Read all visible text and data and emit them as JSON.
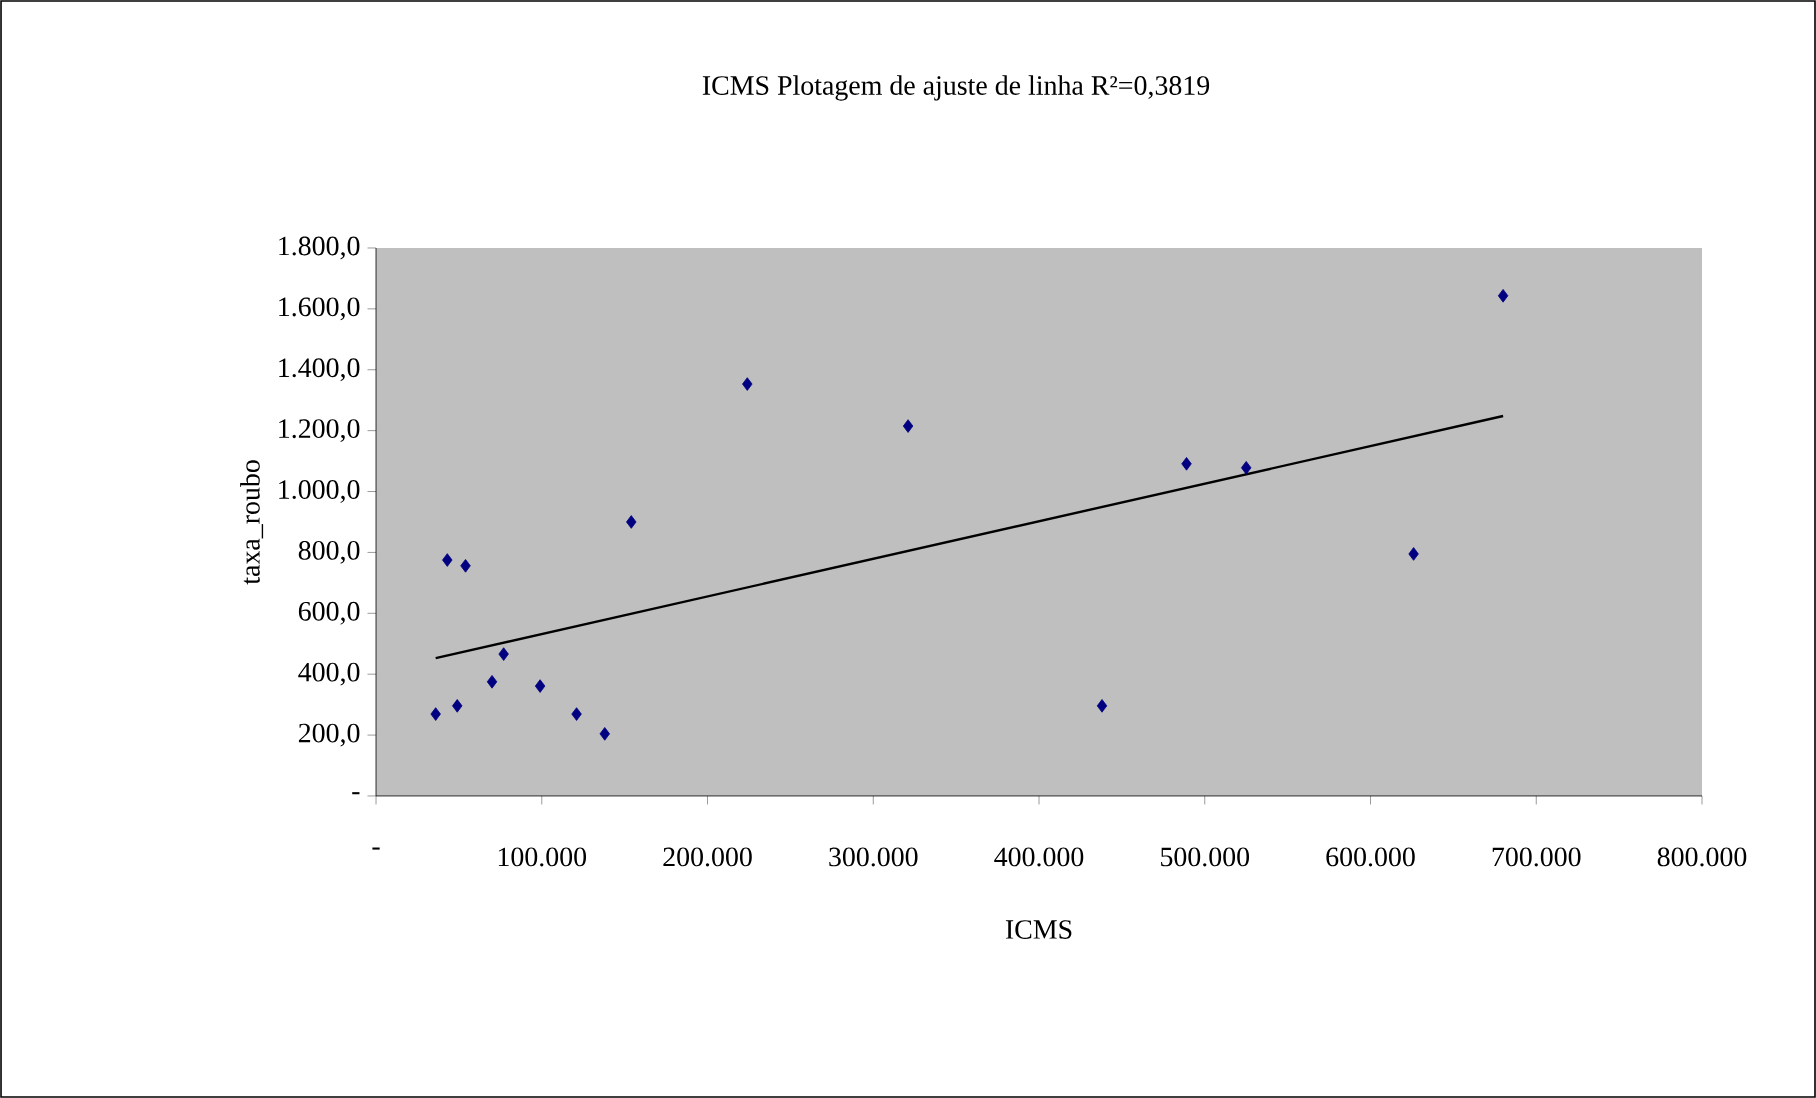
{
  "chart_data": {
    "type": "scatter",
    "title": "ICMS Plotagem de ajuste de linha  R²=0,3819",
    "xlabel": "ICMS",
    "ylabel": "taxa_roubo",
    "xlim": [
      0,
      800000
    ],
    "ylim": [
      0,
      1800
    ],
    "xticks": [
      {
        "value": 0,
        "label": "-"
      },
      {
        "value": 100000,
        "label": "100.000"
      },
      {
        "value": 200000,
        "label": "200.000"
      },
      {
        "value": 300000,
        "label": "300.000"
      },
      {
        "value": 400000,
        "label": "400.000"
      },
      {
        "value": 500000,
        "label": "500.000"
      },
      {
        "value": 600000,
        "label": "600.000"
      },
      {
        "value": 700000,
        "label": "700.000"
      },
      {
        "value": 800000,
        "label": "800.000"
      }
    ],
    "yticks": [
      {
        "value": 0,
        "label": "-"
      },
      {
        "value": 200,
        "label": "200,0"
      },
      {
        "value": 400,
        "label": "400,0"
      },
      {
        "value": 600,
        "label": "600,0"
      },
      {
        "value": 800,
        "label": "800,0"
      },
      {
        "value": 1000,
        "label": "1.000,0"
      },
      {
        "value": 1200,
        "label": "1.200,0"
      },
      {
        "value": 1400,
        "label": "1.400,0"
      },
      {
        "value": 1600,
        "label": "1.600,0"
      },
      {
        "value": 1800,
        "label": "1.800,0"
      }
    ],
    "grid": false,
    "marker": "diamond",
    "series": [
      {
        "color": "#000080",
        "x": [
          36000,
          43000,
          49000,
          54000,
          70000,
          77000,
          99000,
          121000,
          138000,
          154000,
          224000,
          321000,
          438000,
          489000,
          525000,
          626000,
          680000
        ],
        "values": [
          269,
          775,
          296,
          756,
          375,
          466,
          361,
          269,
          204,
          900,
          1353,
          1215,
          296,
          1091,
          1078,
          795,
          1643
        ]
      },
      {
        "type": "line",
        "color": "#000000",
        "marker": "none",
        "line_style": "solid",
        "x": [
          36000,
          680000
        ],
        "values": [
          453,
          1248
        ]
      }
    ]
  }
}
